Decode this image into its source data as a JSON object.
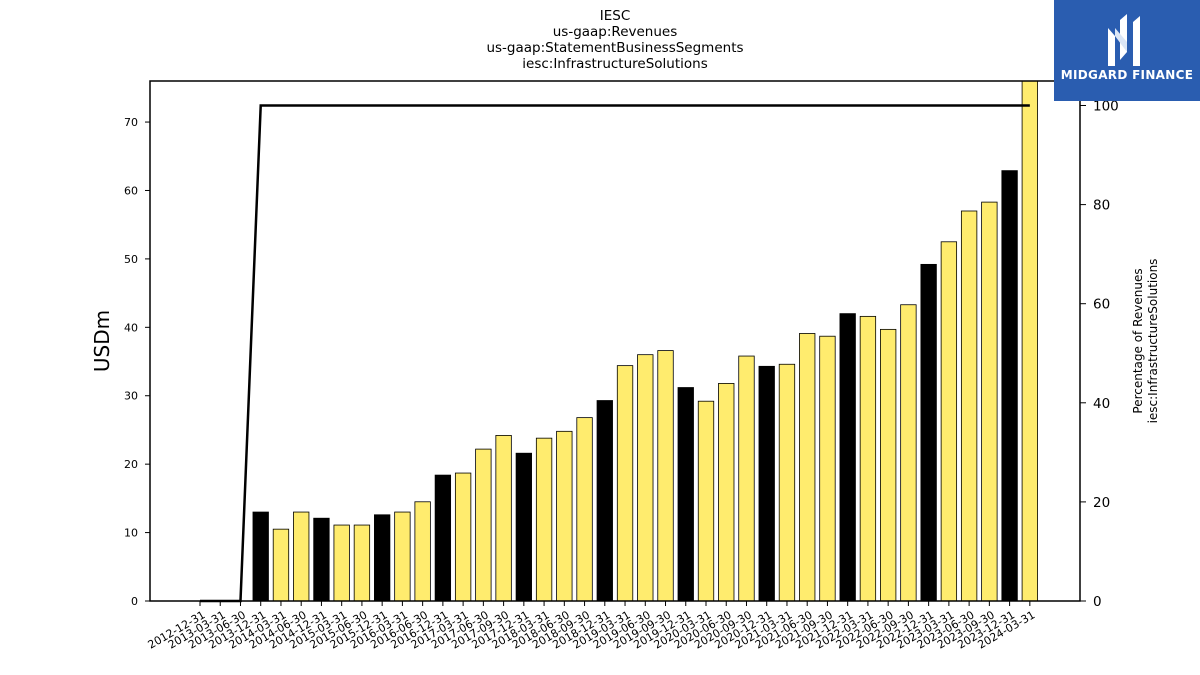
{
  "chart_data": {
    "type": "bar",
    "title_lines": [
      "IESC",
      "us-gaap:Revenues",
      "us-gaap:StatementBusinessSegments",
      "iesc:InfrastructureSolutions"
    ],
    "ylabel": "USDm",
    "y2label_lines": [
      "Percentage of Revenues",
      "iesc:InfrastructureSolutions"
    ],
    "ylim": [
      0,
      76
    ],
    "y2lim": [
      0,
      100
    ],
    "yticks": [
      0,
      10,
      20,
      30,
      40,
      50,
      60,
      70
    ],
    "y2ticks": [
      0,
      20,
      40,
      60,
      80,
      100
    ],
    "categories": [
      "2012-12-31",
      "2013-03-31",
      "2013-06-30",
      "2013-12-31",
      "2014-03-31",
      "2014-06-30",
      "2014-12-31",
      "2015-03-31",
      "2015-06-30",
      "2015-12-31",
      "2016-03-31",
      "2016-06-30",
      "2016-12-31",
      "2017-03-31",
      "2017-06-30",
      "2017-09-30",
      "2017-12-31",
      "2018-03-31",
      "2018-06-30",
      "2018-09-30",
      "2018-12-31",
      "2019-03-31",
      "2019-06-30",
      "2019-09-30",
      "2019-12-31",
      "2020-03-31",
      "2020-06-30",
      "2020-09-30",
      "2020-12-31",
      "2021-03-31",
      "2021-06-30",
      "2021-09-30",
      "2021-12-31",
      "2022-03-31",
      "2022-06-30",
      "2022-09-30",
      "2022-12-31",
      "2023-03-31",
      "2023-06-30",
      "2023-09-30",
      "2023-12-31",
      "2024-03-31"
    ],
    "series": [
      {
        "type": "bar",
        "values": [
          0,
          0,
          0,
          13.0,
          10.5,
          13.0,
          12.1,
          11.1,
          11.1,
          12.6,
          13.0,
          14.5,
          18.4,
          18.7,
          22.2,
          24.2,
          21.6,
          23.8,
          24.8,
          26.8,
          29.3,
          34.4,
          36.0,
          36.6,
          31.2,
          29.2,
          31.8,
          35.8,
          34.3,
          34.6,
          39.1,
          38.7,
          42.0,
          41.6,
          39.7,
          43.3,
          49.2,
          52.5,
          57.0,
          58.3,
          62.9,
          76.0
        ],
        "colors": [
          "#ffec6e",
          "#ffec6e",
          "#ffec6e",
          "#000000",
          "#ffec6e",
          "#ffec6e",
          "#000000",
          "#ffec6e",
          "#ffec6e",
          "#000000",
          "#ffec6e",
          "#ffec6e",
          "#000000",
          "#ffec6e",
          "#ffec6e",
          "#ffec6e",
          "#000000",
          "#ffec6e",
          "#ffec6e",
          "#ffec6e",
          "#000000",
          "#ffec6e",
          "#ffec6e",
          "#ffec6e",
          "#000000",
          "#ffec6e",
          "#ffec6e",
          "#ffec6e",
          "#000000",
          "#ffec6e",
          "#ffec6e",
          "#ffec6e",
          "#000000",
          "#ffec6e",
          "#ffec6e",
          "#ffec6e",
          "#000000",
          "#ffec6e",
          "#ffec6e",
          "#ffec6e",
          "#000000",
          "#ffec6e"
        ]
      },
      {
        "type": "line",
        "axis": "right",
        "color": "#000000",
        "values": [
          0,
          0,
          0,
          100,
          100,
          100,
          100,
          100,
          100,
          100,
          100,
          100,
          100,
          100,
          100,
          100,
          100,
          100,
          100,
          100,
          100,
          100,
          100,
          100,
          100,
          100,
          100,
          100,
          100,
          100,
          100,
          100,
          100,
          100,
          100,
          100,
          100,
          100,
          100,
          100,
          100,
          100
        ]
      }
    ],
    "grid": false,
    "legend": "none"
  },
  "logo": {
    "text": "MIDGARD FINANCE",
    "background": "#2a5db0"
  }
}
